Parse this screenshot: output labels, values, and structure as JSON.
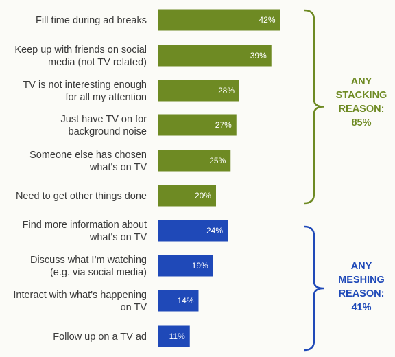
{
  "chart_data": {
    "type": "bar",
    "orientation": "horizontal",
    "xlim": [
      0,
      100
    ],
    "value_suffix": "%",
    "categories": [
      {
        "lines": [
          "Fill time during ad breaks"
        ],
        "value": 42,
        "group": "stacking"
      },
      {
        "lines": [
          "Keep up with friends on social",
          "media (not TV related)"
        ],
        "value": 39,
        "group": "stacking"
      },
      {
        "lines": [
          "TV is not interesting enough",
          "for all my attention"
        ],
        "value": 28,
        "group": "stacking"
      },
      {
        "lines": [
          "Just have TV on for",
          "background noise"
        ],
        "value": 27,
        "group": "stacking"
      },
      {
        "lines": [
          "Someone else has chosen",
          "what's on TV"
        ],
        "value": 25,
        "group": "stacking"
      },
      {
        "lines": [
          "Need to get other things done"
        ],
        "value": 20,
        "group": "stacking"
      },
      {
        "lines": [
          "Find more information about",
          "what's on TV"
        ],
        "value": 24,
        "group": "meshing"
      },
      {
        "lines": [
          "Discuss what I’m watching",
          "(e.g. via social media)"
        ],
        "value": 19,
        "group": "meshing"
      },
      {
        "lines": [
          "Interact with what's happening",
          "on TV"
        ],
        "value": 14,
        "group": "meshing"
      },
      {
        "lines": [
          "Follow up on a TV ad"
        ],
        "value": 11,
        "group": "meshing"
      }
    ],
    "groups": [
      {
        "key": "stacking",
        "label_lines": [
          "ANY",
          "STACKING",
          "REASON:",
          "85%"
        ],
        "color": "#6e8a23"
      },
      {
        "key": "meshing",
        "label_lines": [
          "ANY",
          "MESHING",
          "REASON:",
          "41%"
        ],
        "color": "#1f49b8"
      }
    ]
  }
}
